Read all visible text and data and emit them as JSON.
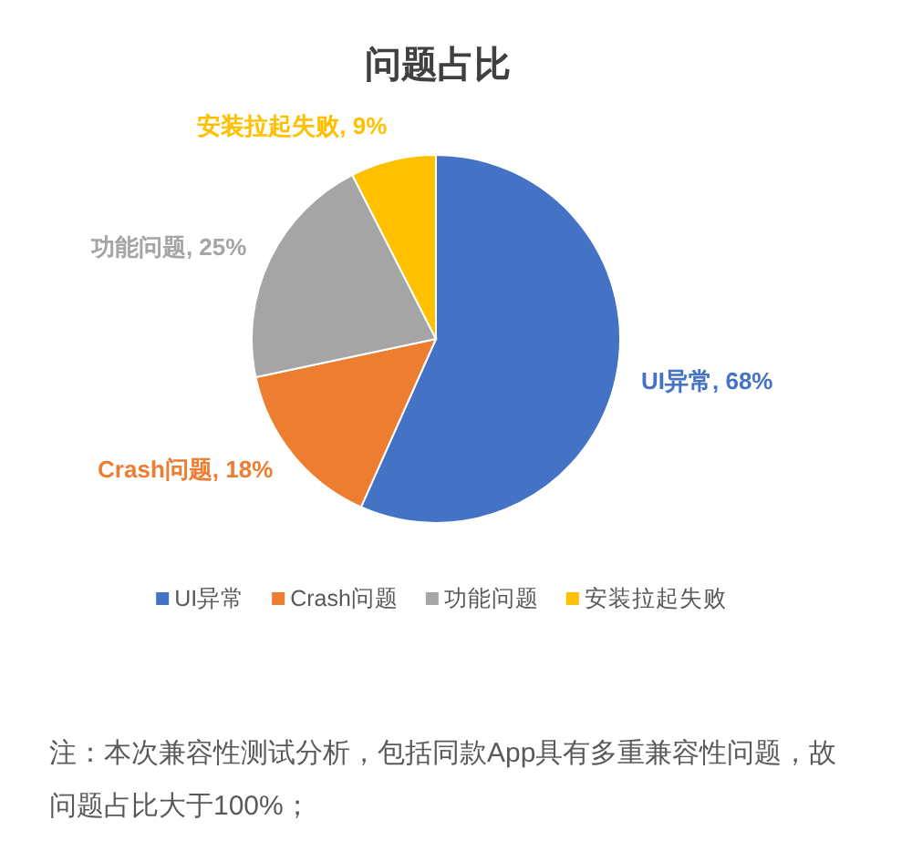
{
  "chart_data": {
    "type": "pie",
    "title": "问题占比",
    "categories": [
      "UI异常",
      "Crash问题",
      "功能问题",
      "安装拉起失败"
    ],
    "values": [
      68,
      18,
      25,
      9
    ],
    "colors": [
      "#4472c4",
      "#ed7d31",
      "#a5a5a5",
      "#ffc000"
    ],
    "value_labels": [
      "UI异常, 68%",
      "Crash问题, 18%",
      "功能问题, 25%",
      "安装拉起失败, 9%"
    ],
    "legend": "bottom",
    "annotations": [
      "注：本次兼容性测试分析，包括同款App具有多重兼容性问题，故问题占比大于100%；"
    ]
  }
}
